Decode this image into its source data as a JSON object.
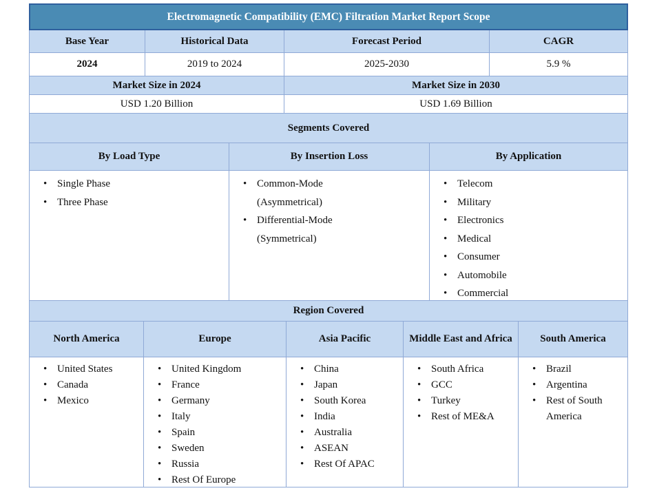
{
  "title": "Electromagnetic Compatibility (EMC) Filtration Market Report Scope",
  "overview": {
    "headers": [
      "Base Year",
      "Historical Data",
      "Forecast Period",
      "CAGR"
    ],
    "values": [
      "2024",
      "2019 to 2024",
      "2025-2030",
      "5.9 %"
    ]
  },
  "market_size": {
    "headers": [
      "Market Size in 2024",
      "Market Size in 2030"
    ],
    "values": [
      "USD 1.20 Billion",
      "USD 1.69 Billion"
    ]
  },
  "segments": {
    "section_title": "Segments Covered",
    "columns": [
      {
        "header": "By Load Type",
        "items": [
          "Single Phase",
          "Three Phase"
        ]
      },
      {
        "header": "By Insertion Loss",
        "items": [
          "Common-Mode\n(Asymmetrical)",
          "Differential-Mode\n(Symmetrical)"
        ]
      },
      {
        "header": "By Application",
        "items": [
          "Telecom",
          "Military",
          "Electronics",
          "Medical",
          "Consumer",
          "Automobile",
          "Commercial"
        ]
      }
    ]
  },
  "regions": {
    "section_title": "Region Covered",
    "columns": [
      {
        "header": "North America",
        "items": [
          "United States",
          "Canada",
          "Mexico"
        ]
      },
      {
        "header": "Europe",
        "items": [
          "United Kingdom",
          "France",
          "Germany",
          "Italy",
          "Spain",
          "Sweden",
          "Russia",
          "Rest Of Europe"
        ]
      },
      {
        "header": "Asia Pacific",
        "items": [
          "China",
          "Japan",
          "South Korea",
          "India",
          "Australia",
          "ASEAN",
          "Rest Of APAC"
        ]
      },
      {
        "header": "Middle East and Africa",
        "items": [
          "South Africa",
          "GCC",
          "Turkey",
          "Rest of ME&A"
        ]
      },
      {
        "header": "South America",
        "items": [
          "Brazil",
          "Argentina",
          "Rest of South America"
        ]
      }
    ]
  },
  "colors": {
    "title_bg": "#4A8BB4",
    "title_border": "#2F5F9E",
    "header_bg": "#C5D9F1",
    "cell_border": "#8FA9D6",
    "title_text": "#FFFFFF",
    "body_text": "#111111"
  }
}
